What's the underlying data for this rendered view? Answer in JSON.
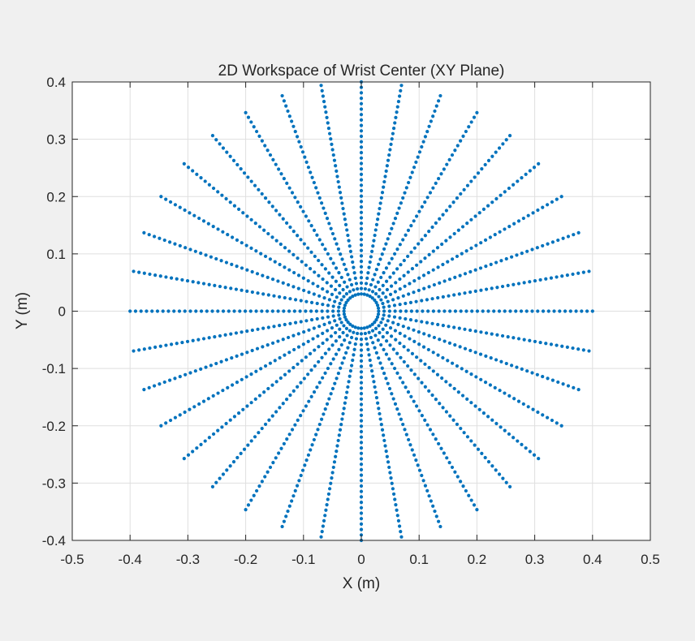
{
  "chart_data": {
    "type": "scatter",
    "title": "2D Workspace of Wrist Center (XY Plane)",
    "xlabel": "X (m)",
    "ylabel": "Y (m)",
    "xlim": [
      -0.5,
      0.5
    ],
    "ylim": [
      -0.4,
      0.4
    ],
    "xticks": [
      -0.5,
      -0.4,
      -0.3,
      -0.2,
      -0.1,
      0,
      0.1,
      0.2,
      0.3,
      0.4,
      0.5
    ],
    "yticks": [
      -0.4,
      -0.3,
      -0.2,
      -0.1,
      0,
      0.1,
      0.2,
      0.3,
      0.4
    ],
    "xtick_labels": [
      "-0.5",
      "-0.4",
      "-0.3",
      "-0.2",
      "-0.1",
      "0",
      "0.1",
      "0.2",
      "0.3",
      "0.4",
      "0.5"
    ],
    "ytick_labels": [
      "-0.4",
      "-0.3",
      "-0.2",
      "-0.1",
      "0",
      "0.1",
      "0.2",
      "0.3",
      "0.4"
    ],
    "grid": true,
    "marker_color": "#0072BD",
    "workspace": {
      "num_rays": 36,
      "angle_step_deg": 10,
      "inner_radius": 0.03,
      "outer_radius": 0.4,
      "points_per_ray": 40
    }
  }
}
